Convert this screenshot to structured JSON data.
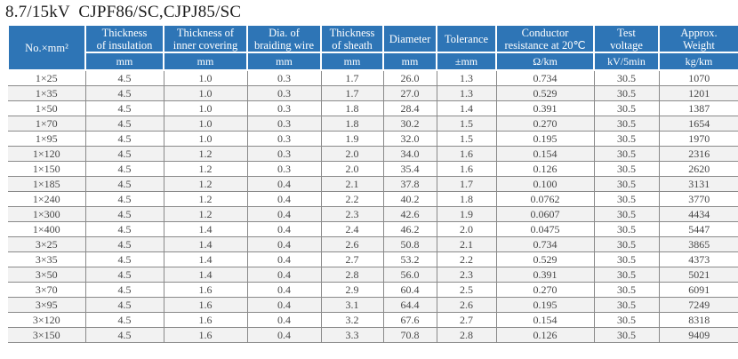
{
  "title": "8.7/15kV  CJPF86/SC,CJPJ85/SC",
  "colors": {
    "header_bg": "#2e75b6",
    "header_text": "#ffffff",
    "row_alt_bg": "#f2f2f2",
    "grid_line": "#8a8a8a",
    "body_text": "#474747"
  },
  "table": {
    "columns": [
      {
        "label": "No.×mm²",
        "unit": ""
      },
      {
        "label": "Thickness\nof insulation",
        "unit": "mm"
      },
      {
        "label": "Thickness of\ninner covering",
        "unit": "mm"
      },
      {
        "label": "Dia. of\nbraiding wire",
        "unit": "mm"
      },
      {
        "label": "Thickness\nof sheath",
        "unit": "mm"
      },
      {
        "label": "Diameter",
        "unit": "mm"
      },
      {
        "label": "Tolerance",
        "unit": "±mm"
      },
      {
        "label": "Conductor\nresistance at 20℃",
        "unit": "Ω/km"
      },
      {
        "label": "Test\nvoltage",
        "unit": "kV/5min"
      },
      {
        "label": "Approx.\nWeight",
        "unit": "kg/km"
      }
    ],
    "rows": [
      [
        "1×25",
        "4.5",
        "1.0",
        "0.3",
        "1.7",
        "26.0",
        "1.3",
        "0.734",
        "30.5",
        "1070"
      ],
      [
        "1×35",
        "4.5",
        "1.0",
        "0.3",
        "1.7",
        "27.0",
        "1.3",
        "0.529",
        "30.5",
        "1201"
      ],
      [
        "1×50",
        "4.5",
        "1.0",
        "0.3",
        "1.8",
        "28.4",
        "1.4",
        "0.391",
        "30.5",
        "1387"
      ],
      [
        "1×70",
        "4.5",
        "1.0",
        "0.3",
        "1.8",
        "30.2",
        "1.5",
        "0.270",
        "30.5",
        "1654"
      ],
      [
        "1×95",
        "4.5",
        "1.0",
        "0.3",
        "1.9",
        "32.0",
        "1.5",
        "0.195",
        "30.5",
        "1970"
      ],
      [
        "1×120",
        "4.5",
        "1.2",
        "0.3",
        "2.0",
        "34.0",
        "1.6",
        "0.154",
        "30.5",
        "2316"
      ],
      [
        "1×150",
        "4.5",
        "1.2",
        "0.3",
        "2.0",
        "35.4",
        "1.6",
        "0.126",
        "30.5",
        "2620"
      ],
      [
        "1×185",
        "4.5",
        "1.2",
        "0.4",
        "2.1",
        "37.8",
        "1.7",
        "0.100",
        "30.5",
        "3131"
      ],
      [
        "1×240",
        "4.5",
        "1.2",
        "0.4",
        "2.2",
        "40.2",
        "1.8",
        "0.0762",
        "30.5",
        "3770"
      ],
      [
        "1×300",
        "4.5",
        "1.2",
        "0.4",
        "2.3",
        "42.6",
        "1.9",
        "0.0607",
        "30.5",
        "4434"
      ],
      [
        "1×400",
        "4.5",
        "1.4",
        "0.4",
        "2.4",
        "46.2",
        "2.0",
        "0.0475",
        "30.5",
        "5447"
      ],
      [
        "3×25",
        "4.5",
        "1.4",
        "0.4",
        "2.6",
        "50.8",
        "2.1",
        "0.734",
        "30.5",
        "3865"
      ],
      [
        "3×35",
        "4.5",
        "1.4",
        "0.4",
        "2.7",
        "53.2",
        "2.2",
        "0.529",
        "30.5",
        "4373"
      ],
      [
        "3×50",
        "4.5",
        "1.4",
        "0.4",
        "2.8",
        "56.0",
        "2.3",
        "0.391",
        "30.5",
        "5021"
      ],
      [
        "3×70",
        "4.5",
        "1.6",
        "0.4",
        "2.9",
        "60.4",
        "2.5",
        "0.270",
        "30.5",
        "6091"
      ],
      [
        "3×95",
        "4.5",
        "1.6",
        "0.4",
        "3.1",
        "64.4",
        "2.6",
        "0.195",
        "30.5",
        "7249"
      ],
      [
        "3×120",
        "4.5",
        "1.6",
        "0.4",
        "3.2",
        "67.6",
        "2.7",
        "0.154",
        "30.5",
        "8318"
      ],
      [
        "3×150",
        "4.5",
        "1.6",
        "0.4",
        "3.3",
        "70.8",
        "2.8",
        "0.126",
        "30.5",
        "9409"
      ]
    ]
  }
}
